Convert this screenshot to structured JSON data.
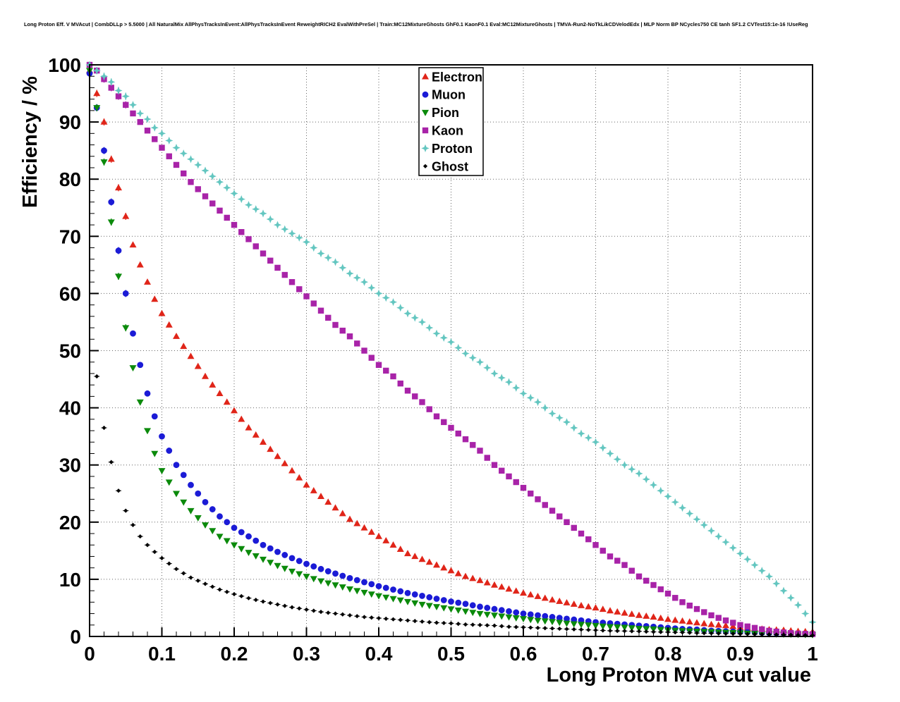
{
  "title": "Long Proton Eff. V MVAcut | CombDLLp > 5.5000 | All NaturalMix AllPhysTracksInEvent:AllPhysTracksInEvent ReweightRICH2 EvalWithPreSel | Train:MC12MixtureGhosts GhF0.1 KaonF0.1 Eval:MC12MixtureGhosts | TMVA-Run2-NoTkLikCDVelodEdx | MLP Norm BP NCycles750 CE tanh SF1.2 CVTest15:1e-16 !UseReg",
  "chart_data": {
    "type": "scatter",
    "title": "Long Proton Eff. V MVAcut",
    "xlabel": "Long Proton MVA cut value",
    "ylabel": "Efficiency / %",
    "xlim": [
      0,
      1
    ],
    "ylim": [
      0,
      100
    ],
    "grid": true,
    "legend_position": "top-center",
    "xticks": [
      "0",
      "0.1",
      "0.2",
      "0.3",
      "0.4",
      "0.5",
      "0.6",
      "0.7",
      "0.8",
      "0.9",
      "1"
    ],
    "yticks": [
      "0",
      "10",
      "20",
      "30",
      "40",
      "50",
      "60",
      "70",
      "80",
      "90",
      "100"
    ],
    "x": [
      0,
      0.01,
      0.02,
      0.03,
      0.04,
      0.05,
      0.06,
      0.07,
      0.08,
      0.09,
      0.1,
      0.12,
      0.14,
      0.16,
      0.18,
      0.2,
      0.22,
      0.24,
      0.26,
      0.28,
      0.3,
      0.32,
      0.34,
      0.36,
      0.38,
      0.4,
      0.42,
      0.44,
      0.46,
      0.48,
      0.5,
      0.52,
      0.54,
      0.56,
      0.58,
      0.6,
      0.62,
      0.64,
      0.66,
      0.68,
      0.7,
      0.72,
      0.74,
      0.76,
      0.78,
      0.8,
      0.82,
      0.84,
      0.86,
      0.88,
      0.9,
      0.92,
      0.94,
      0.96,
      0.98,
      1
    ],
    "series": [
      {
        "name": "Electron",
        "color": "#e02519",
        "marker": "triangle-up",
        "values": [
          99,
          95,
          90,
          83.5,
          78.5,
          73.5,
          68.5,
          65,
          62,
          59,
          56.5,
          52.5,
          49,
          45.5,
          42.5,
          39.5,
          36.5,
          34,
          31.5,
          29,
          26.5,
          24.5,
          22.5,
          20.5,
          19,
          17.5,
          16,
          14.5,
          13.5,
          12.5,
          11.5,
          10.5,
          9.8,
          9,
          8.3,
          7.6,
          7,
          6.4,
          5.9,
          5.4,
          5,
          4.5,
          4.1,
          3.7,
          3.4,
          3,
          2.7,
          2.4,
          2.1,
          1.9,
          1.6,
          1.4,
          1.2,
          1.1,
          0.9,
          0.8
        ]
      },
      {
        "name": "Muon",
        "color": "#1b1bd6",
        "marker": "circle",
        "values": [
          98.5,
          92.5,
          85,
          76,
          67.5,
          60,
          53,
          47.5,
          42.5,
          38.5,
          35,
          30,
          26.5,
          23.5,
          21,
          19,
          17.5,
          16,
          14.8,
          13.7,
          12.7,
          11.8,
          11,
          10.2,
          9.5,
          8.8,
          8.2,
          7.6,
          7.1,
          6.6,
          6.1,
          5.7,
          5.2,
          4.8,
          4.4,
          4,
          3.7,
          3.4,
          3.1,
          2.8,
          2.5,
          2.3,
          2.1,
          1.9,
          1.7,
          1.5,
          1.3,
          1.2,
          1,
          0.9,
          0.8,
          0.7,
          0.6,
          0.5,
          0.45,
          0.4
        ]
      },
      {
        "name": "Pion",
        "color": "#0b8a0b",
        "marker": "triangle-down",
        "values": [
          99,
          92.5,
          83,
          72.5,
          63,
          54,
          47,
          41,
          36,
          32,
          29,
          25,
          22,
          19.5,
          17.5,
          16,
          14.7,
          13.5,
          12.4,
          11.4,
          10.5,
          9.7,
          9,
          8.3,
          7.7,
          7.1,
          6.6,
          6.1,
          5.6,
          5.2,
          4.8,
          4.4,
          4,
          3.7,
          3.4,
          3.1,
          2.8,
          2.6,
          2.3,
          2.1,
          1.9,
          1.7,
          1.6,
          1.4,
          1.3,
          1.1,
          1,
          0.9,
          0.8,
          0.7,
          0.6,
          0.5,
          0.45,
          0.4,
          0.35,
          0.3
        ]
      },
      {
        "name": "Kaon",
        "color": "#a823a8",
        "marker": "square",
        "values": [
          100,
          99,
          97.5,
          96,
          94.5,
          93,
          91.5,
          90,
          88.5,
          87,
          85.5,
          82.5,
          79.5,
          77,
          74.5,
          72,
          69.5,
          67,
          64.5,
          62,
          59.5,
          57,
          54.5,
          52.5,
          50,
          47.5,
          45.5,
          43,
          41,
          38.5,
          36.5,
          34.5,
          32.5,
          30,
          28,
          26,
          24,
          22,
          20,
          18,
          16,
          14,
          12.5,
          10.5,
          9,
          7.5,
          6,
          4.8,
          3.7,
          2.8,
          2,
          1.5,
          1,
          0.7,
          0.5,
          0.4
        ]
      },
      {
        "name": "Proton",
        "color": "#63c6c0",
        "marker": "star4",
        "values": [
          100,
          99,
          98,
          97,
          95.5,
          94.5,
          93,
          91.5,
          90.5,
          89,
          88,
          85.5,
          83.5,
          81.5,
          79.5,
          77.5,
          75.5,
          74,
          72,
          70.5,
          69,
          67,
          65.5,
          63.5,
          62,
          60,
          58.5,
          56.5,
          55,
          53,
          51.5,
          49.5,
          48,
          46,
          44.5,
          42.5,
          41,
          39,
          37.5,
          35.5,
          34,
          32,
          30,
          28.5,
          26.5,
          24.5,
          22.5,
          20.5,
          18.5,
          16.5,
          14.5,
          12.5,
          10.5,
          8,
          5.5,
          2.5
        ]
      },
      {
        "name": "Ghost",
        "color": "#000000",
        "marker": "diamond",
        "values": [
          null,
          45.5,
          36.5,
          30.5,
          25.5,
          22,
          19.5,
          17.5,
          16,
          14.8,
          13.7,
          11.8,
          10.3,
          9.2,
          8.2,
          7.4,
          6.7,
          6.1,
          5.6,
          5.1,
          4.7,
          4.3,
          4,
          3.7,
          3.4,
          3.2,
          3,
          2.8,
          2.6,
          2.4,
          2.3,
          2.1,
          2,
          1.9,
          1.7,
          1.6,
          1.5,
          1.4,
          1.3,
          1.2,
          1.1,
          1,
          0.95,
          0.9,
          0.8,
          0.75,
          0.7,
          0.6,
          0.55,
          0.5,
          0.45,
          0.4,
          0.35,
          0.3,
          0.25,
          0.2
        ]
      }
    ]
  }
}
